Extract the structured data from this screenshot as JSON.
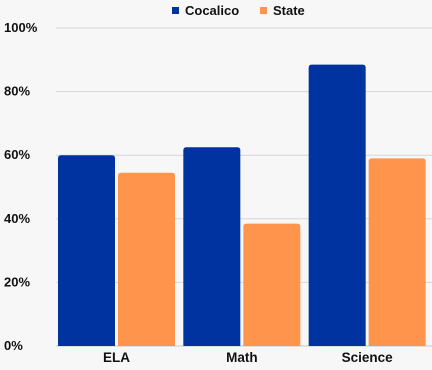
{
  "chart_data": {
    "type": "bar",
    "categories": [
      "ELA",
      "Math",
      "Science"
    ],
    "series": [
      {
        "name": "Cocalico",
        "color": "#0033a0",
        "values": [
          60,
          62.5,
          88.5
        ]
      },
      {
        "name": "State",
        "color": "#ff944d",
        "values": [
          54.5,
          38.5,
          59
        ]
      }
    ],
    "ylim": [
      0,
      100
    ],
    "yticks": [
      0,
      20,
      40,
      60,
      80,
      100
    ],
    "ytick_labels": [
      "0%",
      "20%",
      "40%",
      "60%",
      "80%",
      "100%"
    ],
    "grid": true,
    "legend": "top-center"
  }
}
